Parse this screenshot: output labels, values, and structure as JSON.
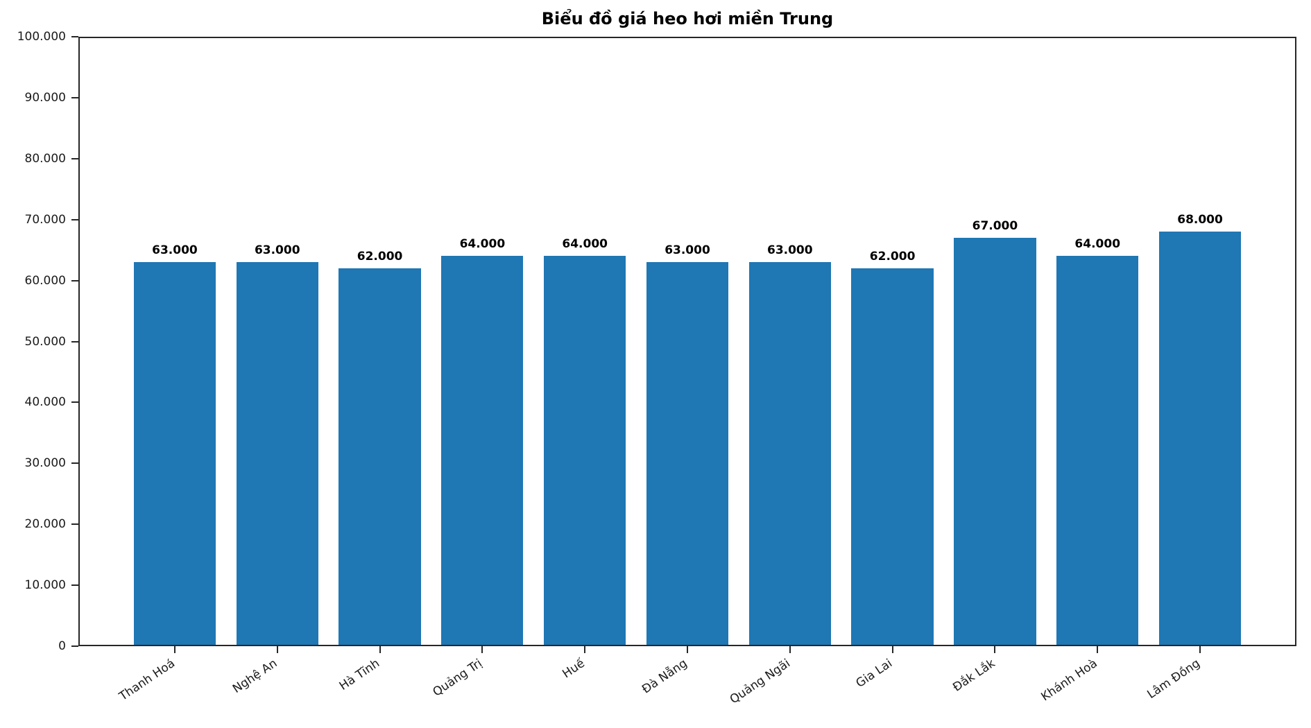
{
  "chart_data": {
    "type": "bar",
    "title": "Biểu đồ giá heo hơi miền Trung",
    "categories": [
      "Thanh Hoá",
      "Nghệ An",
      "Hà Tĩnh",
      "Quảng Trị",
      "Huế",
      "Đà Nẵng",
      "Quảng Ngãi",
      "Gia Lai",
      "Đắk Lắk",
      "Khánh Hoà",
      "Lâm Đồng"
    ],
    "values": [
      63000,
      63000,
      62000,
      64000,
      64000,
      63000,
      63000,
      62000,
      67000,
      64000,
      68000
    ],
    "bar_labels": [
      "63.000",
      "63.000",
      "62.000",
      "64.000",
      "64.000",
      "63.000",
      "63.000",
      "62.000",
      "67.000",
      "64.000",
      "68.000"
    ],
    "xlabel": "",
    "ylabel": "",
    "ylim": [
      0,
      100000
    ],
    "ytick_step": 10000,
    "ytick_labels": [
      "0",
      "10.000",
      "20.000",
      "30.000",
      "40.000",
      "50.000",
      "60.000",
      "70.000",
      "80.000",
      "90.000",
      "100.000"
    ],
    "grid": false,
    "legend": null,
    "bar_color": "#1f77b4",
    "text_color": "#000000",
    "spine_color": "#262626"
  }
}
